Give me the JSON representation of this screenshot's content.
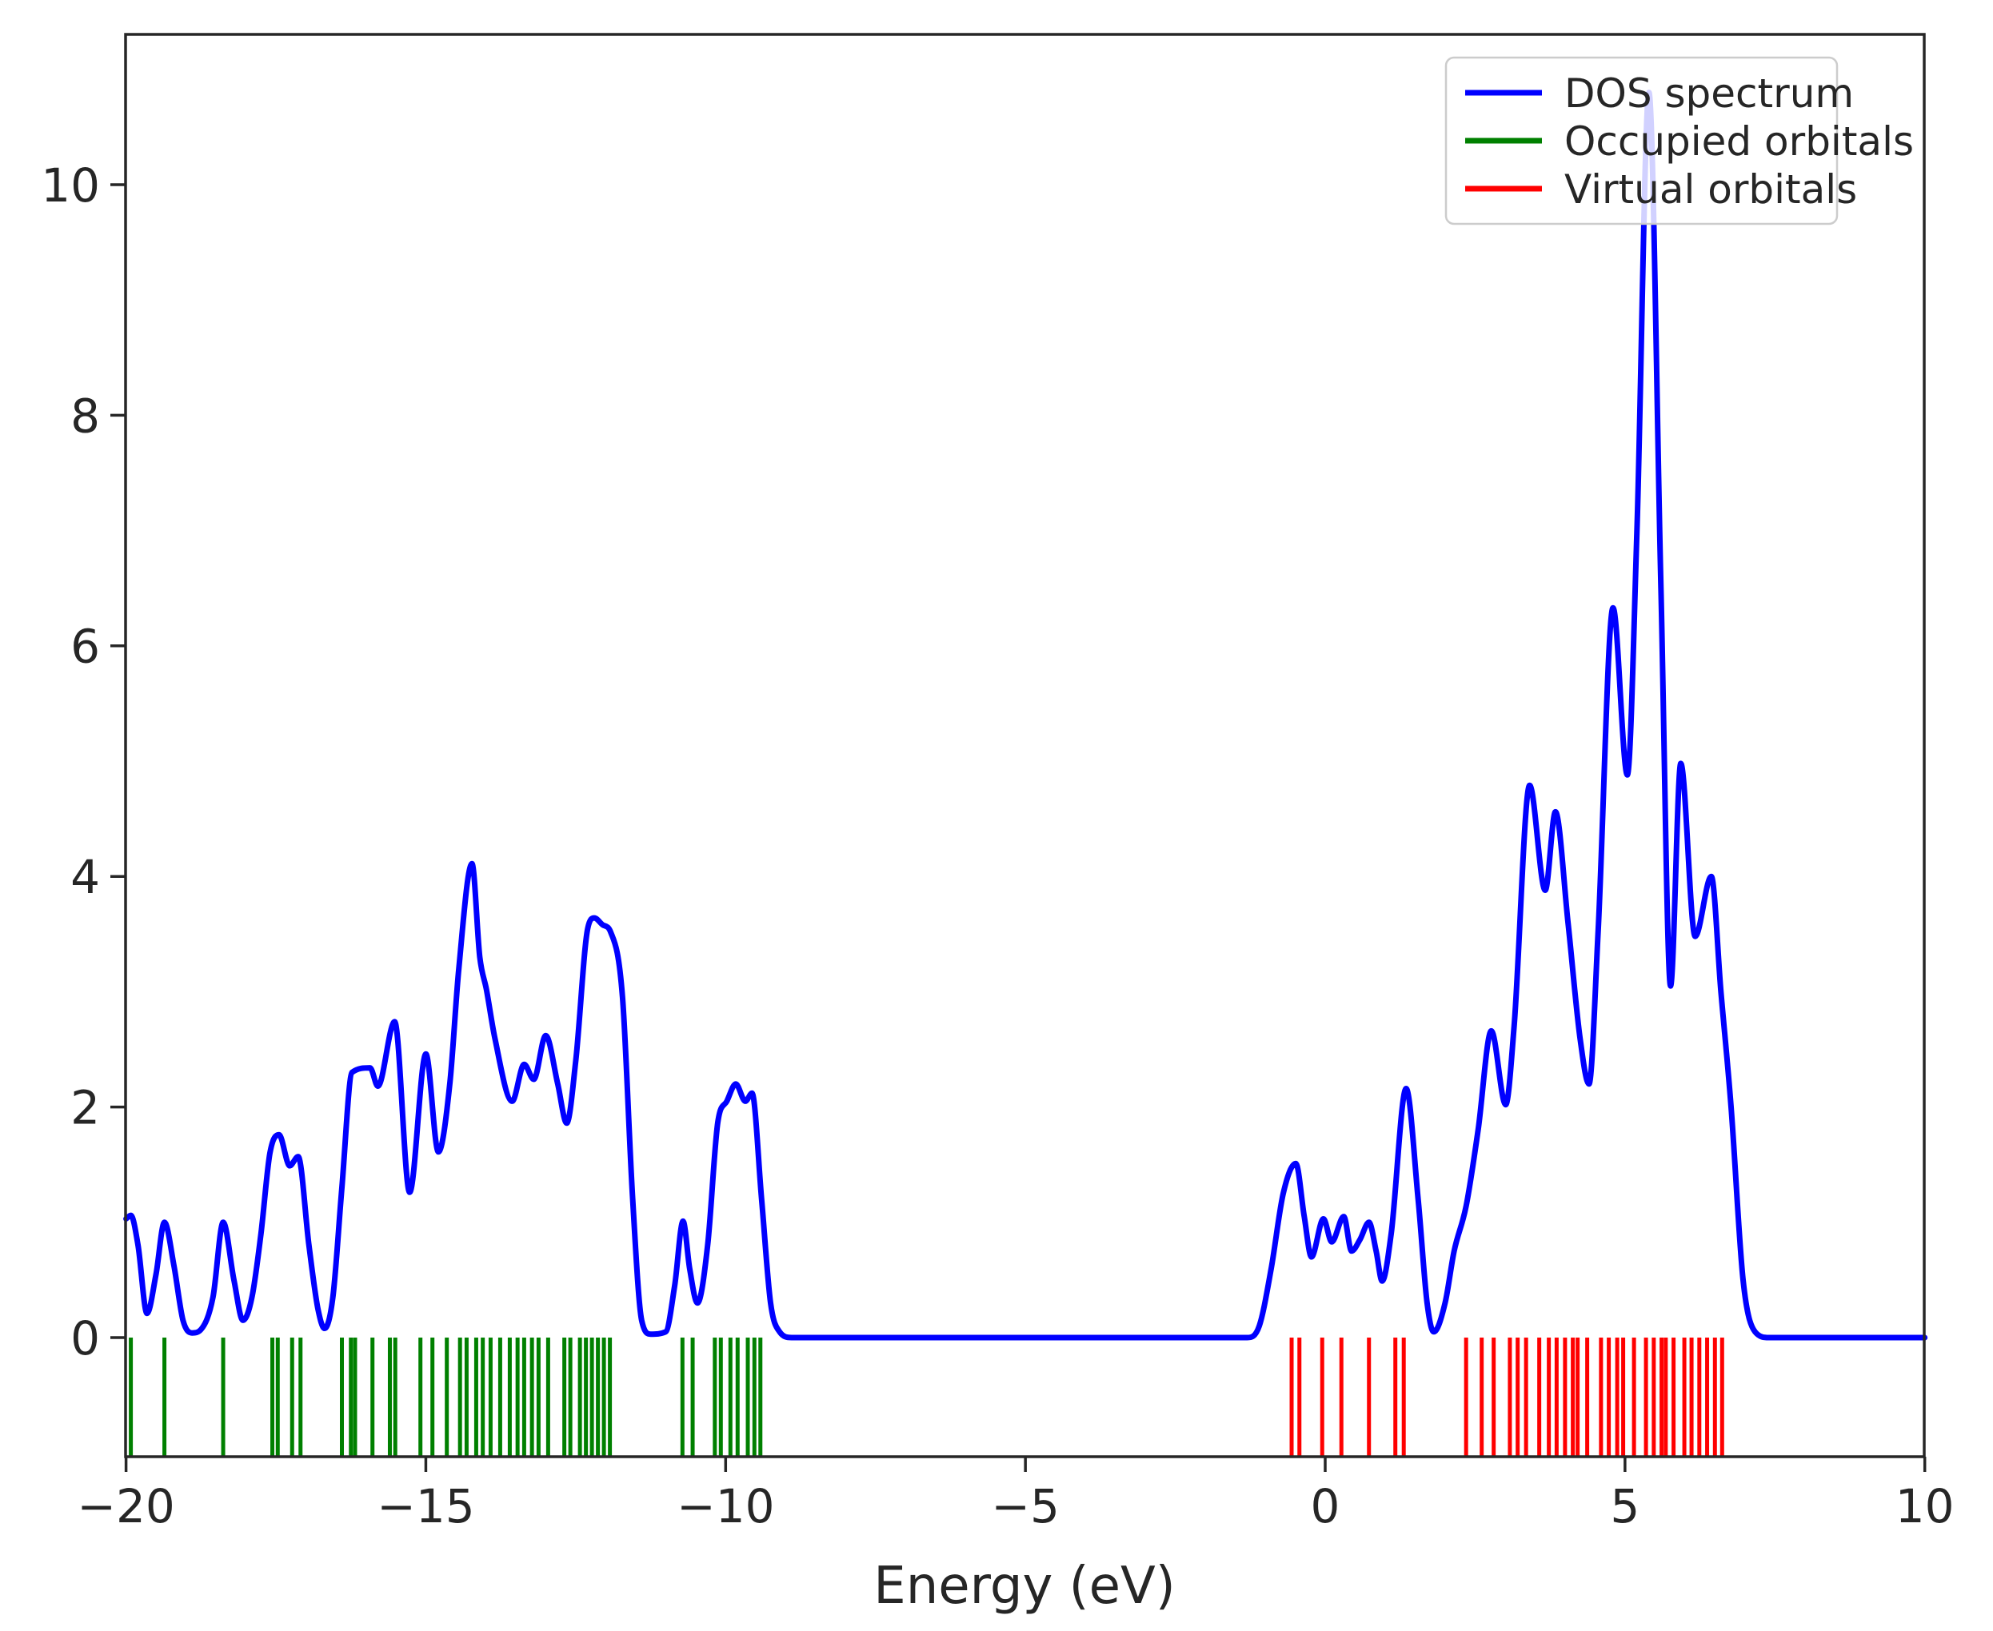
{
  "chart_data": {
    "type": "line",
    "title": "",
    "xlabel": "Energy (eV)",
    "ylabel": "",
    "xlim": [
      -20,
      10
    ],
    "ylim": [
      -1.03,
      11.3
    ],
    "grid": false,
    "xticks": {
      "values": [
        -20,
        -15,
        -10,
        -5,
        0,
        5,
        10
      ],
      "labels": [
        "−20",
        "−15",
        "−10",
        "−5",
        "0",
        "5",
        "10"
      ]
    },
    "yticks": {
      "values": [
        0,
        2,
        4,
        6,
        8,
        10
      ],
      "labels": [
        "0",
        "2",
        "4",
        "6",
        "8",
        "10"
      ]
    },
    "legend": {
      "location": "upper right",
      "entries": [
        {
          "label": "DOS spectrum",
          "color": "#0000ff"
        },
        {
          "label": "Occupied orbitals",
          "color": "#008000"
        },
        {
          "label": "Virtual orbitals",
          "color": "#ff0000"
        }
      ]
    },
    "series": [
      {
        "name": "DOS spectrum",
        "color": "#0000ff",
        "points": [
          [
            -20.0,
            1.03
          ],
          [
            -19.92,
            1.06
          ],
          [
            -19.8,
            0.8
          ],
          [
            -19.65,
            0.21
          ],
          [
            -19.5,
            0.55
          ],
          [
            -19.36,
            1.0
          ],
          [
            -19.2,
            0.62
          ],
          [
            -19.05,
            0.15
          ],
          [
            -18.9,
            0.04
          ],
          [
            -18.75,
            0.07
          ],
          [
            -18.55,
            0.35
          ],
          [
            -18.38,
            1.0
          ],
          [
            -18.2,
            0.5
          ],
          [
            -18.05,
            0.15
          ],
          [
            -17.9,
            0.35
          ],
          [
            -17.75,
            0.9
          ],
          [
            -17.6,
            1.6
          ],
          [
            -17.45,
            1.76
          ],
          [
            -17.27,
            1.49
          ],
          [
            -17.13,
            1.57
          ],
          [
            -16.95,
            0.8
          ],
          [
            -16.8,
            0.25
          ],
          [
            -16.69,
            0.08
          ],
          [
            -16.55,
            0.35
          ],
          [
            -16.4,
            1.3
          ],
          [
            -16.23,
            2.3
          ],
          [
            -15.93,
            2.34
          ],
          [
            -15.8,
            2.18
          ],
          [
            -15.52,
            2.74
          ],
          [
            -15.27,
            1.26
          ],
          [
            -15.0,
            2.46
          ],
          [
            -14.79,
            1.61
          ],
          [
            -14.6,
            2.2
          ],
          [
            -14.45,
            3.2
          ],
          [
            -14.23,
            4.11
          ],
          [
            -14.1,
            3.3
          ],
          [
            -13.99,
            3.02
          ],
          [
            -13.85,
            2.6
          ],
          [
            -13.56,
            2.05
          ],
          [
            -13.36,
            2.37
          ],
          [
            -13.2,
            2.24
          ],
          [
            -13.0,
            2.62
          ],
          [
            -12.8,
            2.2
          ],
          [
            -12.65,
            1.86
          ],
          [
            -12.5,
            2.4
          ],
          [
            -12.3,
            3.55
          ],
          [
            -12.19,
            3.64
          ],
          [
            -12.05,
            3.58
          ],
          [
            -11.92,
            3.52
          ],
          [
            -11.72,
            2.95
          ],
          [
            -11.55,
            1.2
          ],
          [
            -11.4,
            0.15
          ],
          [
            -11.25,
            0.03
          ],
          [
            -11.0,
            0.05
          ],
          [
            -10.85,
            0.45
          ],
          [
            -10.71,
            1.01
          ],
          [
            -10.6,
            0.6
          ],
          [
            -10.47,
            0.3
          ],
          [
            -10.3,
            0.8
          ],
          [
            -10.13,
            1.87
          ],
          [
            -9.98,
            2.05
          ],
          [
            -9.83,
            2.2
          ],
          [
            -9.67,
            2.05
          ],
          [
            -9.56,
            2.12
          ],
          [
            -9.4,
            1.2
          ],
          [
            -9.25,
            0.3
          ],
          [
            -9.1,
            0.05
          ],
          [
            -8.9,
            0.0
          ],
          [
            -7.0,
            0.0
          ],
          [
            -5.0,
            0.0
          ],
          [
            -3.0,
            0.0
          ],
          [
            -1.3,
            0.0
          ],
          [
            -1.1,
            0.1
          ],
          [
            -0.9,
            0.6
          ],
          [
            -0.7,
            1.25
          ],
          [
            -0.49,
            1.51
          ],
          [
            -0.35,
            1.05
          ],
          [
            -0.23,
            0.7
          ],
          [
            -0.03,
            1.03
          ],
          [
            0.11,
            0.83
          ],
          [
            0.31,
            1.05
          ],
          [
            0.44,
            0.75
          ],
          [
            0.58,
            0.85
          ],
          [
            0.73,
            1.0
          ],
          [
            0.85,
            0.75
          ],
          [
            0.95,
            0.49
          ],
          [
            1.1,
            0.9
          ],
          [
            1.35,
            2.16
          ],
          [
            1.55,
            1.2
          ],
          [
            1.7,
            0.3
          ],
          [
            1.81,
            0.05
          ],
          [
            2.0,
            0.3
          ],
          [
            2.15,
            0.75
          ],
          [
            2.35,
            1.14
          ],
          [
            2.55,
            1.8
          ],
          [
            2.77,
            2.66
          ],
          [
            3.01,
            2.02
          ],
          [
            3.15,
            2.7
          ],
          [
            3.41,
            4.79
          ],
          [
            3.67,
            3.88
          ],
          [
            3.84,
            4.56
          ],
          [
            4.05,
            3.6
          ],
          [
            4.25,
            2.6
          ],
          [
            4.4,
            2.2
          ],
          [
            4.55,
            3.5
          ],
          [
            4.8,
            6.33
          ],
          [
            5.04,
            4.88
          ],
          [
            5.2,
            7.0
          ],
          [
            5.4,
            10.8
          ],
          [
            5.6,
            6.5
          ],
          [
            5.76,
            3.05
          ],
          [
            5.93,
            4.98
          ],
          [
            6.17,
            3.48
          ],
          [
            6.44,
            4.0
          ],
          [
            6.6,
            3.0
          ],
          [
            6.77,
            2.0
          ],
          [
            6.97,
            0.5
          ],
          [
            7.17,
            0.05
          ],
          [
            7.4,
            0.0
          ],
          [
            8.5,
            0.0
          ],
          [
            10.0,
            0.0
          ]
        ]
      }
    ],
    "occupied_orbitals": {
      "color": "#008000",
      "stick_top": 0,
      "stick_bottom": -1.0,
      "energies": [
        -19.92,
        -19.36,
        -18.38,
        -17.56,
        -17.47,
        -17.23,
        -17.09,
        -16.4,
        -16.25,
        -16.18,
        -15.89,
        -15.6,
        -15.51,
        -15.09,
        -14.89,
        -14.65,
        -14.43,
        -14.32,
        -14.16,
        -14.05,
        -13.92,
        -13.76,
        -13.6,
        -13.47,
        -13.36,
        -13.23,
        -13.12,
        -12.96,
        -12.69,
        -12.59,
        -12.43,
        -12.33,
        -12.23,
        -12.13,
        -12.03,
        -11.93,
        -10.72,
        -10.55,
        -10.18,
        -10.08,
        -9.92,
        -9.8,
        -9.63,
        -9.52,
        -9.42
      ]
    },
    "virtual_orbitals": {
      "color": "#ff0000",
      "stick_top": 0,
      "stick_bottom": -1.0,
      "energies": [
        -0.56,
        -0.43,
        -0.05,
        0.27,
        0.73,
        1.17,
        1.31,
        2.35,
        2.61,
        2.81,
        3.08,
        3.21,
        3.35,
        3.57,
        3.73,
        3.86,
        4.0,
        4.13,
        4.21,
        4.37,
        4.6,
        4.73,
        4.87,
        4.97,
        5.15,
        5.35,
        5.48,
        5.61,
        5.68,
        5.81,
        5.99,
        6.11,
        6.24,
        6.37,
        6.5,
        6.62
      ]
    }
  }
}
